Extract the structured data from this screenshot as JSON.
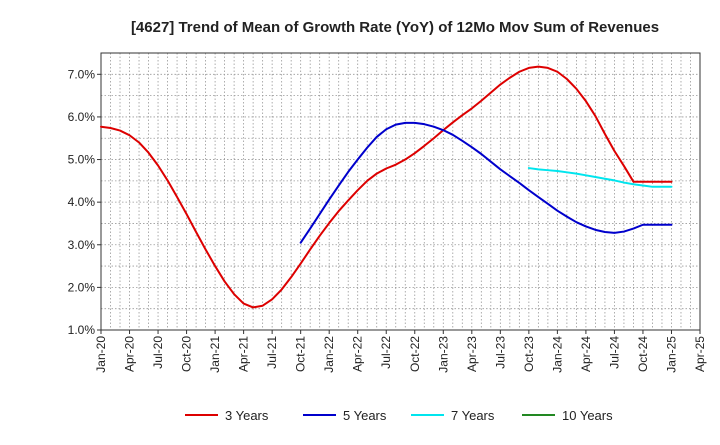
{
  "chart_data": {
    "type": "line",
    "title": "[4627]  Trend of Mean of Growth Rate (YoY) of 12Mo Mov Sum of Revenues",
    "xlabel": "",
    "ylabel": "",
    "ylim": [
      1.0,
      7.5
    ],
    "y_ticks": [
      1.0,
      2.0,
      3.0,
      4.0,
      5.0,
      6.0,
      7.0
    ],
    "y_tick_labels": [
      "1.0%",
      "2.0%",
      "3.0%",
      "4.0%",
      "5.0%",
      "6.0%",
      "7.0%"
    ],
    "x_range_months": [
      0,
      63
    ],
    "x_ticks": [
      0,
      3,
      6,
      9,
      12,
      15,
      18,
      21,
      24,
      27,
      30,
      33,
      36,
      39,
      42,
      45,
      48,
      51,
      54,
      57,
      60,
      63
    ],
    "x_tick_labels": [
      "Jan-20",
      "Apr-20",
      "Jul-20",
      "Oct-20",
      "Jan-21",
      "Apr-21",
      "Jul-21",
      "Oct-21",
      "Jan-22",
      "Apr-22",
      "Jul-22",
      "Oct-22",
      "Jan-23",
      "Apr-23",
      "Jul-23",
      "Oct-23",
      "Jan-24",
      "Apr-24",
      "Jul-24",
      "Oct-24",
      "Jan-25",
      "Apr-25"
    ],
    "grid": true,
    "legend_position": "bottom",
    "series": [
      {
        "name": "3 Years",
        "color": "#dd0000",
        "x": [
          0,
          1,
          2,
          3,
          4,
          5,
          6,
          7,
          8,
          9,
          10,
          11,
          12,
          13,
          14,
          15,
          16,
          17,
          18,
          19,
          20,
          21,
          22,
          23,
          24,
          25,
          26,
          27,
          28,
          29,
          30,
          31,
          32,
          33,
          34,
          35,
          36,
          37,
          38,
          39,
          40,
          41,
          42,
          43,
          44,
          45,
          46,
          47,
          48,
          49,
          50,
          51,
          52,
          53,
          54,
          55,
          56,
          57,
          58,
          59,
          60
        ],
        "values": [
          5.77,
          5.74,
          5.68,
          5.57,
          5.4,
          5.16,
          4.86,
          4.51,
          4.12,
          3.72,
          3.3,
          2.89,
          2.5,
          2.14,
          1.84,
          1.62,
          1.53,
          1.57,
          1.72,
          1.95,
          2.24,
          2.56,
          2.89,
          3.21,
          3.51,
          3.79,
          4.04,
          4.28,
          4.5,
          4.67,
          4.79,
          4.88,
          5.0,
          5.15,
          5.32,
          5.5,
          5.69,
          5.87,
          6.04,
          6.2,
          6.38,
          6.57,
          6.76,
          6.92,
          7.06,
          7.15,
          7.18,
          7.15,
          7.06,
          6.89,
          6.66,
          6.37,
          6.02,
          5.6,
          5.2,
          4.85,
          4.48,
          4.48,
          4.48,
          4.48,
          4.48
        ]
      },
      {
        "name": "5 Years",
        "color": "#0000cc",
        "x": [
          21,
          22,
          23,
          24,
          25,
          26,
          27,
          28,
          29,
          30,
          31,
          32,
          33,
          34,
          35,
          36,
          37,
          38,
          39,
          40,
          41,
          42,
          43,
          44,
          45,
          46,
          47,
          48,
          49,
          50,
          51,
          52,
          53,
          54,
          55,
          56,
          57,
          58,
          59,
          60
        ],
        "values": [
          3.05,
          3.38,
          3.72,
          4.06,
          4.39,
          4.71,
          5.0,
          5.28,
          5.53,
          5.71,
          5.82,
          5.86,
          5.86,
          5.83,
          5.77,
          5.69,
          5.58,
          5.44,
          5.29,
          5.13,
          4.95,
          4.77,
          4.61,
          4.45,
          4.28,
          4.12,
          3.96,
          3.8,
          3.66,
          3.53,
          3.43,
          3.35,
          3.3,
          3.28,
          3.31,
          3.38,
          3.47,
          3.47,
          3.47,
          3.47
        ]
      },
      {
        "name": "7 Years",
        "color": "#00e5ee",
        "x": [
          45,
          46,
          47,
          48,
          49,
          50,
          51,
          52,
          53,
          54,
          55,
          56,
          57,
          58,
          59,
          60
        ],
        "values": [
          4.8,
          4.77,
          4.75,
          4.73,
          4.7,
          4.67,
          4.63,
          4.59,
          4.55,
          4.51,
          4.46,
          4.42,
          4.39,
          4.36,
          4.36,
          4.36
        ]
      },
      {
        "name": "10 Years",
        "color": "#228822",
        "x": [],
        "values": []
      }
    ]
  }
}
